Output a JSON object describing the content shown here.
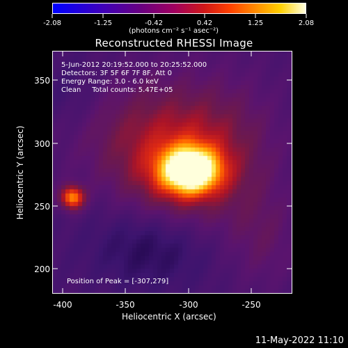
{
  "colorbar": {
    "ticks": [
      "-2.08",
      "-1.25",
      "-0.42",
      "0.42",
      "1.25",
      "2.08"
    ],
    "units": "(photons cm⁻² s⁻¹ asec⁻²)"
  },
  "title": "Reconstructed RHESSI Image",
  "info": {
    "line1": "5-Jun-2012 20:19:52.000 to 20:25:52.000",
    "line2": "Detectors: 3F 5F 6F 7F 8F, Att 0",
    "line3": "Energy Range: 3.0 - 6.0 keV",
    "line4": "Clean     Total counts: 5.47E+05",
    "peak": "Position of Peak = [-307,279]"
  },
  "axes": {
    "xlabel": "Heliocentric X (arcsec)",
    "ylabel": "Heliocentric Y (arcsec)",
    "xticks": [
      "-400",
      "-350",
      "-300",
      "-250"
    ],
    "yticks": [
      "350",
      "300",
      "250",
      "200"
    ]
  },
  "footer": {
    "date": "11-May-2022 11:10"
  },
  "colors": {
    "background": "#000000",
    "text": "#ffffff"
  }
}
